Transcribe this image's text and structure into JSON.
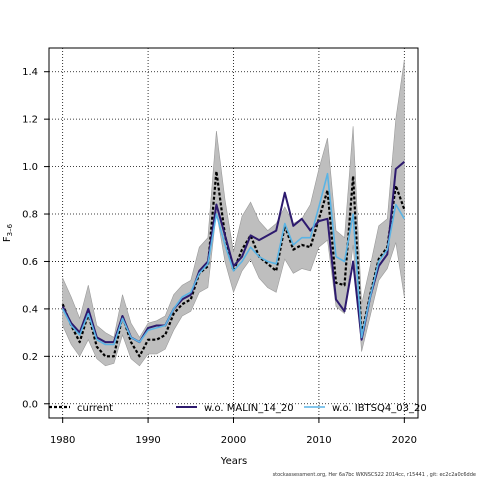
{
  "chart_data": {
    "type": "line",
    "xlabel": "Years",
    "ylabel": "F",
    "ylabel_sub": "3–6",
    "xlim": [
      1978.4,
      2021.6
    ],
    "ylim": [
      -0.06,
      1.5
    ],
    "xticks": [
      1980,
      1990,
      2000,
      2010,
      2020
    ],
    "yticks": [
      0.0,
      0.2,
      0.4,
      0.6,
      0.8,
      1.0,
      1.2,
      1.4
    ],
    "grid": true,
    "legend_position": "bottom",
    "x": [
      1980,
      1981,
      1982,
      1983,
      1984,
      1985,
      1986,
      1987,
      1988,
      1989,
      1990,
      1991,
      1992,
      1993,
      1994,
      1995,
      1996,
      1997,
      1998,
      1999,
      2000,
      2001,
      2002,
      2003,
      2004,
      2005,
      2006,
      2007,
      2008,
      2009,
      2010,
      2011,
      2012,
      2013,
      2014,
      2015,
      2016,
      2017,
      2018,
      2019,
      2020
    ],
    "band": {
      "color": "#bebebe",
      "upper": [
        0.53,
        0.45,
        0.36,
        0.5,
        0.33,
        0.3,
        0.28,
        0.46,
        0.34,
        0.28,
        0.34,
        0.35,
        0.37,
        0.46,
        0.5,
        0.52,
        0.66,
        0.7,
        1.15,
        0.86,
        0.64,
        0.79,
        0.85,
        0.77,
        0.73,
        0.76,
        0.83,
        0.76,
        0.78,
        0.84,
        0.99,
        1.12,
        0.73,
        0.7,
        1.17,
        0.42,
        0.58,
        0.75,
        0.78,
        1.2,
        1.45
      ],
      "lower": [
        0.33,
        0.25,
        0.2,
        0.27,
        0.19,
        0.16,
        0.17,
        0.29,
        0.19,
        0.16,
        0.21,
        0.21,
        0.23,
        0.31,
        0.37,
        0.39,
        0.47,
        0.49,
        0.81,
        0.6,
        0.47,
        0.56,
        0.61,
        0.53,
        0.49,
        0.47,
        0.61,
        0.55,
        0.57,
        0.56,
        0.66,
        0.69,
        0.41,
        0.38,
        0.67,
        0.22,
        0.37,
        0.52,
        0.57,
        0.68,
        0.45
      ]
    },
    "series": [
      {
        "name": "current",
        "color": "#000000",
        "dash": "3,2",
        "width": 2.2,
        "values": [
          0.42,
          0.33,
          0.26,
          0.38,
          0.24,
          0.2,
          0.2,
          0.37,
          0.26,
          0.2,
          0.27,
          0.27,
          0.29,
          0.38,
          0.42,
          0.44,
          0.55,
          0.58,
          0.98,
          0.71,
          0.56,
          0.65,
          0.71,
          0.62,
          0.59,
          0.56,
          0.75,
          0.65,
          0.67,
          0.66,
          0.78,
          0.9,
          0.51,
          0.5,
          0.96,
          0.29,
          0.46,
          0.61,
          0.66,
          0.92,
          0.82
        ]
      },
      {
        "name": "w.o. MALIN_14_20",
        "color": "#2d1a6e",
        "dash": "",
        "width": 2.0,
        "values": [
          0.41,
          0.34,
          0.3,
          0.4,
          0.28,
          0.26,
          0.26,
          0.37,
          0.28,
          0.26,
          0.32,
          0.33,
          0.33,
          0.4,
          0.44,
          0.46,
          0.56,
          0.6,
          0.84,
          0.71,
          0.58,
          0.62,
          0.71,
          0.69,
          0.71,
          0.73,
          0.89,
          0.75,
          0.78,
          0.73,
          0.77,
          0.78,
          0.44,
          0.39,
          0.6,
          0.27,
          0.45,
          0.58,
          0.63,
          0.99,
          1.02
        ]
      },
      {
        "name": "w.o. IBTSQ4_03_20",
        "color": "#5ab4e5",
        "dash": "",
        "width": 1.6,
        "values": [
          0.4,
          0.33,
          0.29,
          0.38,
          0.27,
          0.25,
          0.25,
          0.36,
          0.28,
          0.26,
          0.31,
          0.32,
          0.33,
          0.4,
          0.45,
          0.47,
          0.55,
          0.59,
          0.8,
          0.67,
          0.56,
          0.6,
          0.66,
          0.62,
          0.6,
          0.59,
          0.76,
          0.67,
          0.7,
          0.7,
          0.83,
          0.97,
          0.62,
          0.6,
          0.8,
          0.28,
          0.45,
          0.6,
          0.65,
          0.84,
          0.78
        ]
      }
    ]
  },
  "footer": "stockassessment.org,  Her  6a7bc  WKNSCS22  2014cc, r15441  ,  git:  ec2c2a0c6dde"
}
